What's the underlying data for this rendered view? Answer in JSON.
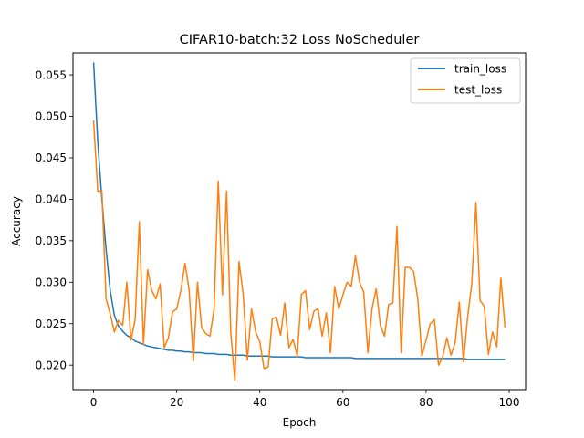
{
  "chart_data": {
    "type": "line",
    "title": "CIFAR10-batch:32 Loss NoScheduler",
    "xlabel": "Epoch",
    "ylabel": "Accuracy",
    "xlim": [
      -4.95,
      103.95
    ],
    "ylim": [
      0.01705,
      0.05765
    ],
    "xticks": [
      0,
      20,
      40,
      60,
      80,
      100
    ],
    "yticks": [
      0.02,
      0.025,
      0.03,
      0.035,
      0.04,
      0.045,
      0.05,
      0.055
    ],
    "ytick_labels": [
      "0.020",
      "0.025",
      "0.030",
      "0.035",
      "0.040",
      "0.045",
      "0.050",
      "0.055"
    ],
    "grid": false,
    "legend_position": "top-right",
    "series": [
      {
        "name": "train_loss",
        "color": "#1f77b4",
        "values": [
          0.0565,
          0.047,
          0.04,
          0.034,
          0.029,
          0.026,
          0.0247,
          0.0241,
          0.0236,
          0.0233,
          0.0229,
          0.0227,
          0.0225,
          0.0223,
          0.0222,
          0.0221,
          0.022,
          0.0219,
          0.0218,
          0.0218,
          0.0217,
          0.0217,
          0.0216,
          0.0216,
          0.0215,
          0.0215,
          0.0215,
          0.0214,
          0.0214,
          0.0214,
          0.0213,
          0.0213,
          0.0213,
          0.0212,
          0.0212,
          0.0212,
          0.0212,
          0.0211,
          0.0211,
          0.0211,
          0.0211,
          0.0211,
          0.0211,
          0.021,
          0.021,
          0.021,
          0.021,
          0.021,
          0.021,
          0.021,
          0.021,
          0.0209,
          0.0209,
          0.0209,
          0.0209,
          0.0209,
          0.0209,
          0.0209,
          0.0209,
          0.0209,
          0.0209,
          0.0209,
          0.0209,
          0.0208,
          0.0208,
          0.0208,
          0.0208,
          0.0208,
          0.0208,
          0.0208,
          0.0208,
          0.0208,
          0.0208,
          0.0208,
          0.0208,
          0.0208,
          0.0208,
          0.0208,
          0.0208,
          0.0208,
          0.0208,
          0.0208,
          0.0208,
          0.0208,
          0.0208,
          0.0208,
          0.0208,
          0.0208,
          0.0208,
          0.0208,
          0.0207,
          0.0207,
          0.0207,
          0.0207,
          0.0207,
          0.0207,
          0.0207,
          0.0207,
          0.0207,
          0.0207
        ]
      },
      {
        "name": "test_loss",
        "color": "#ff7f0e",
        "values": [
          0.0495,
          0.041,
          0.041,
          0.028,
          0.0262,
          0.024,
          0.0254,
          0.0248,
          0.03,
          0.023,
          0.0255,
          0.0373,
          0.0225,
          0.0315,
          0.029,
          0.028,
          0.0298,
          0.0221,
          0.0233,
          0.0264,
          0.0268,
          0.029,
          0.0323,
          0.029,
          0.0205,
          0.03,
          0.0245,
          0.0238,
          0.0235,
          0.0268,
          0.0422,
          0.0285,
          0.041,
          0.024,
          0.0181,
          0.0325,
          0.0285,
          0.0206,
          0.0268,
          0.024,
          0.0228,
          0.0196,
          0.0198,
          0.0256,
          0.0258,
          0.0236,
          0.0275,
          0.0221,
          0.0231,
          0.0211,
          0.0285,
          0.029,
          0.0243,
          0.0265,
          0.0268,
          0.0235,
          0.0263,
          0.0215,
          0.0295,
          0.0268,
          0.0285,
          0.03,
          0.0295,
          0.0332,
          0.03,
          0.0288,
          0.0215,
          0.0268,
          0.0292,
          0.0248,
          0.0235,
          0.0273,
          0.0275,
          0.0367,
          0.0215,
          0.0318,
          0.0318,
          0.0313,
          0.028,
          0.0211,
          0.023,
          0.025,
          0.0255,
          0.02,
          0.021,
          0.0233,
          0.0212,
          0.0227,
          0.0276,
          0.0204,
          0.0258,
          0.0298,
          0.0396,
          0.0278,
          0.0271,
          0.0213,
          0.024,
          0.0222,
          0.0305,
          0.0245
        ]
      }
    ]
  }
}
